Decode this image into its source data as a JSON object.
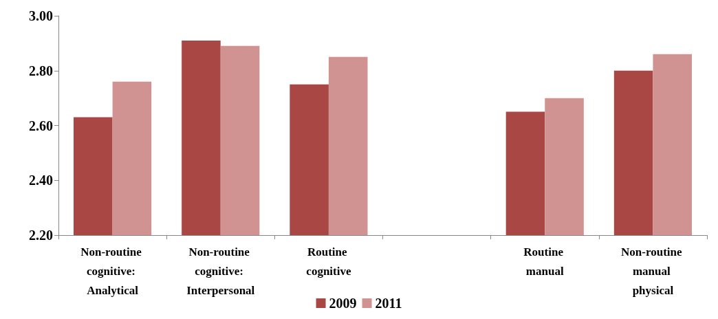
{
  "chart_data": {
    "type": "bar",
    "categories": [
      "Non-routine cognitive: Analytical",
      "Non-routine cognitive: Interpersonal",
      "Routine cognitive",
      null,
      "Routine manual",
      "Non-routine manual physical"
    ],
    "series": [
      {
        "name": "2009",
        "color": "#a94744",
        "values": [
          2.63,
          2.91,
          2.75,
          null,
          2.65,
          2.8
        ]
      },
      {
        "name": "2011",
        "color": "#d19391",
        "values": [
          2.76,
          2.89,
          2.85,
          null,
          2.7,
          2.86
        ]
      }
    ],
    "ylim": [
      2.2,
      3.0
    ],
    "yticks": [
      {
        "value": 2.2,
        "label": "2.20"
      },
      {
        "value": 2.4,
        "label": "2.40"
      },
      {
        "value": 2.6,
        "label": "2.60"
      },
      {
        "value": 2.8,
        "label": "2.80"
      },
      {
        "value": 3.0,
        "label": "3.00"
      }
    ],
    "grid": false,
    "legend": "bottom"
  }
}
